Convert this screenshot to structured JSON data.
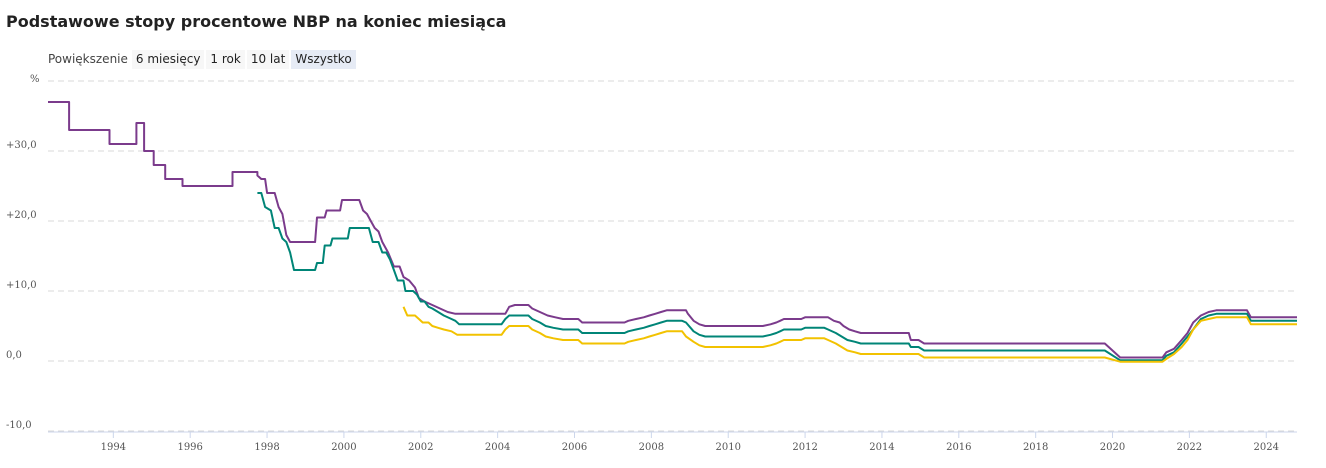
{
  "title": "Podstawowe stopy procentowe NBP na koniec miesiąca",
  "zoom": {
    "label": "Powiększenie",
    "options": [
      "6 miesięcy",
      "1 rok",
      "10 lat",
      "Wszystko"
    ],
    "selected": "Wszystko"
  },
  "chart_data": {
    "type": "line",
    "ylabel": "%",
    "y_ticks": [
      -10,
      0,
      10,
      20,
      30
    ],
    "y_tick_labels": [
      "-10,0",
      "0,0",
      "+10,0",
      "+20,0",
      "+30,0"
    ],
    "ylim": [
      -10,
      40
    ],
    "xlim": [
      1992.3,
      2024.8
    ],
    "x_ticks": [
      1994,
      1996,
      1998,
      2000,
      2002,
      2004,
      2006,
      2008,
      2010,
      2012,
      2014,
      2016,
      2018,
      2020,
      2022,
      2024
    ],
    "grid": true,
    "legend": "none",
    "series": [
      {
        "color": "#7b3b8c",
        "points": [
          [
            1992.3,
            37
          ],
          [
            1992.85,
            37
          ],
          [
            1992.85,
            33
          ],
          [
            1993.9,
            33
          ],
          [
            1993.9,
            31
          ],
          [
            1994.6,
            31
          ],
          [
            1994.6,
            34
          ],
          [
            1994.8,
            34
          ],
          [
            1994.8,
            30
          ],
          [
            1995.05,
            30
          ],
          [
            1995.05,
            28
          ],
          [
            1995.35,
            28
          ],
          [
            1995.35,
            26
          ],
          [
            1995.8,
            26
          ],
          [
            1995.8,
            25
          ],
          [
            1997.1,
            25
          ],
          [
            1997.1,
            27
          ],
          [
            1997.75,
            27
          ],
          [
            1997.75,
            26.5
          ],
          [
            1997.85,
            26
          ],
          [
            1997.95,
            26
          ],
          [
            1998.0,
            24
          ],
          [
            1998.2,
            24
          ],
          [
            1998.3,
            22
          ],
          [
            1998.4,
            21
          ],
          [
            1998.5,
            18
          ],
          [
            1998.6,
            17
          ],
          [
            1999.2,
            17
          ],
          [
            1999.25,
            17
          ],
          [
            1999.3,
            20.5
          ],
          [
            1999.5,
            20.5
          ],
          [
            1999.55,
            21.5
          ],
          [
            1999.9,
            21.5
          ],
          [
            1999.95,
            23
          ],
          [
            2000.4,
            23
          ],
          [
            2000.5,
            21.5
          ],
          [
            2000.6,
            21
          ],
          [
            2000.7,
            20
          ],
          [
            2000.8,
            19
          ],
          [
            2000.9,
            18.5
          ],
          [
            2001.0,
            17
          ],
          [
            2001.15,
            15.5
          ],
          [
            2001.3,
            13.5
          ],
          [
            2001.45,
            13.5
          ],
          [
            2001.55,
            12
          ],
          [
            2001.7,
            11.5
          ],
          [
            2001.85,
            10.5
          ],
          [
            2001.95,
            9
          ],
          [
            2002.1,
            8.5
          ],
          [
            2002.3,
            8
          ],
          [
            2002.5,
            7.5
          ],
          [
            2002.7,
            7
          ],
          [
            2002.9,
            6.75
          ],
          [
            2003.9,
            6.75
          ],
          [
            2004.2,
            6.75
          ],
          [
            2004.3,
            7.75
          ],
          [
            2004.45,
            8
          ],
          [
            2004.8,
            8
          ],
          [
            2004.9,
            7.5
          ],
          [
            2005.1,
            7
          ],
          [
            2005.3,
            6.5
          ],
          [
            2005.5,
            6.25
          ],
          [
            2005.7,
            6
          ],
          [
            2006.1,
            6
          ],
          [
            2006.2,
            5.5
          ],
          [
            2007.3,
            5.5
          ],
          [
            2007.4,
            5.75
          ],
          [
            2007.6,
            6
          ],
          [
            2007.8,
            6.25
          ],
          [
            2007.95,
            6.5
          ],
          [
            2008.1,
            6.75
          ],
          [
            2008.25,
            7
          ],
          [
            2008.4,
            7.25
          ],
          [
            2008.9,
            7.25
          ],
          [
            2008.95,
            6.75
          ],
          [
            2009.1,
            5.75
          ],
          [
            2009.25,
            5.25
          ],
          [
            2009.4,
            5
          ],
          [
            2010.9,
            5
          ],
          [
            2011.1,
            5.25
          ],
          [
            2011.25,
            5.5
          ],
          [
            2011.35,
            5.75
          ],
          [
            2011.45,
            6
          ],
          [
            2011.9,
            6
          ],
          [
            2012.0,
            6.25
          ],
          [
            2012.35,
            6.25
          ],
          [
            2012.6,
            6.25
          ],
          [
            2012.75,
            5.75
          ],
          [
            2012.9,
            5.5
          ],
          [
            2013.0,
            5
          ],
          [
            2013.15,
            4.5
          ],
          [
            2013.3,
            4.25
          ],
          [
            2013.45,
            4
          ],
          [
            2014.7,
            4
          ],
          [
            2014.75,
            3
          ],
          [
            2014.95,
            3
          ],
          [
            2015.1,
            2.5
          ],
          [
            2019.8,
            2.5
          ],
          [
            2020.2,
            0.5
          ],
          [
            2020.4,
            0.5
          ],
          [
            2021.3,
            0.5
          ],
          [
            2021.4,
            1.25
          ],
          [
            2021.6,
            1.75
          ],
          [
            2021.8,
            3
          ],
          [
            2021.95,
            4
          ],
          [
            2022.1,
            5.5
          ],
          [
            2022.3,
            6.5
          ],
          [
            2022.5,
            7
          ],
          [
            2022.7,
            7.25
          ],
          [
            2023.5,
            7.25
          ],
          [
            2023.6,
            6.25
          ],
          [
            2024.8,
            6.25
          ]
        ]
      },
      {
        "color": "#008577",
        "points": [
          [
            1997.75,
            24
          ],
          [
            1997.85,
            24
          ],
          [
            1997.95,
            22
          ],
          [
            1998.1,
            21.5
          ],
          [
            1998.2,
            19
          ],
          [
            1998.3,
            19
          ],
          [
            1998.4,
            17.5
          ],
          [
            1998.5,
            17
          ],
          [
            1998.6,
            15.5
          ],
          [
            1998.7,
            13
          ],
          [
            1999.25,
            13
          ],
          [
            1999.3,
            14
          ],
          [
            1999.45,
            14
          ],
          [
            1999.5,
            16.5
          ],
          [
            1999.65,
            16.5
          ],
          [
            1999.7,
            17.5
          ],
          [
            2000.1,
            17.5
          ],
          [
            2000.15,
            19
          ],
          [
            2000.65,
            19
          ],
          [
            2000.75,
            17
          ],
          [
            2000.9,
            17
          ],
          [
            2001.0,
            15.5
          ],
          [
            2001.1,
            15.5
          ],
          [
            2001.2,
            14.5
          ],
          [
            2001.3,
            13
          ],
          [
            2001.4,
            11.5
          ],
          [
            2001.55,
            11.5
          ],
          [
            2001.6,
            10
          ],
          [
            2001.8,
            10
          ],
          [
            2001.9,
            9.5
          ],
          [
            2002.0,
            8.5
          ],
          [
            2002.1,
            8.5
          ],
          [
            2002.2,
            7.75
          ],
          [
            2002.3,
            7.5
          ],
          [
            2002.45,
            7
          ],
          [
            2002.6,
            6.5
          ],
          [
            2002.8,
            6
          ],
          [
            2002.9,
            5.75
          ],
          [
            2003.0,
            5.25
          ],
          [
            2004.0,
            5.25
          ],
          [
            2004.1,
            5.25
          ],
          [
            2004.2,
            6
          ],
          [
            2004.3,
            6.5
          ],
          [
            2004.8,
            6.5
          ],
          [
            2004.9,
            6
          ],
          [
            2005.1,
            5.5
          ],
          [
            2005.25,
            5
          ],
          [
            2005.45,
            4.75
          ],
          [
            2005.7,
            4.5
          ],
          [
            2006.1,
            4.5
          ],
          [
            2006.2,
            4
          ],
          [
            2007.3,
            4
          ],
          [
            2007.4,
            4.25
          ],
          [
            2007.6,
            4.5
          ],
          [
            2007.8,
            4.75
          ],
          [
            2007.95,
            5
          ],
          [
            2008.1,
            5.25
          ],
          [
            2008.25,
            5.5
          ],
          [
            2008.4,
            5.75
          ],
          [
            2008.8,
            5.75
          ],
          [
            2008.9,
            5.5
          ],
          [
            2009.1,
            4.25
          ],
          [
            2009.25,
            3.75
          ],
          [
            2009.4,
            3.5
          ],
          [
            2010.9,
            3.5
          ],
          [
            2011.1,
            3.75
          ],
          [
            2011.25,
            4
          ],
          [
            2011.35,
            4.25
          ],
          [
            2011.45,
            4.5
          ],
          [
            2011.9,
            4.5
          ],
          [
            2012.0,
            4.75
          ],
          [
            2012.5,
            4.75
          ],
          [
            2012.6,
            4.5
          ],
          [
            2012.8,
            4
          ],
          [
            2012.95,
            3.5
          ],
          [
            2013.1,
            3
          ],
          [
            2013.3,
            2.75
          ],
          [
            2013.45,
            2.5
          ],
          [
            2014.7,
            2.5
          ],
          [
            2014.75,
            2
          ],
          [
            2014.95,
            2
          ],
          [
            2015.1,
            1.5
          ],
          [
            2019.8,
            1.5
          ],
          [
            2020.2,
            0.1
          ],
          [
            2021.3,
            0.1
          ],
          [
            2021.4,
            0.75
          ],
          [
            2021.6,
            1.25
          ],
          [
            2021.8,
            2.5
          ],
          [
            2021.95,
            3.5
          ],
          [
            2022.1,
            4.5
          ],
          [
            2022.3,
            6
          ],
          [
            2022.5,
            6.5
          ],
          [
            2022.7,
            6.75
          ],
          [
            2023.5,
            6.75
          ],
          [
            2023.6,
            5.75
          ],
          [
            2024.8,
            5.75
          ]
        ]
      },
      {
        "color": "#f2c200",
        "points": [
          [
            2001.55,
            7.75
          ],
          [
            2001.65,
            6.5
          ],
          [
            2001.85,
            6.5
          ],
          [
            2001.95,
            6
          ],
          [
            2002.05,
            5.5
          ],
          [
            2002.2,
            5.5
          ],
          [
            2002.3,
            5
          ],
          [
            2002.45,
            4.75
          ],
          [
            2002.6,
            4.5
          ],
          [
            2002.8,
            4.25
          ],
          [
            2002.95,
            3.75
          ],
          [
            2004.0,
            3.75
          ],
          [
            2004.1,
            3.75
          ],
          [
            2004.2,
            4.5
          ],
          [
            2004.3,
            5
          ],
          [
            2004.8,
            5
          ],
          [
            2004.9,
            4.5
          ],
          [
            2005.1,
            4
          ],
          [
            2005.25,
            3.5
          ],
          [
            2005.45,
            3.25
          ],
          [
            2005.7,
            3
          ],
          [
            2006.1,
            3
          ],
          [
            2006.2,
            2.5
          ],
          [
            2007.3,
            2.5
          ],
          [
            2007.4,
            2.75
          ],
          [
            2007.6,
            3
          ],
          [
            2007.8,
            3.25
          ],
          [
            2007.95,
            3.5
          ],
          [
            2008.1,
            3.75
          ],
          [
            2008.25,
            4
          ],
          [
            2008.4,
            4.25
          ],
          [
            2008.8,
            4.25
          ],
          [
            2008.9,
            3.5
          ],
          [
            2009.1,
            2.75
          ],
          [
            2009.25,
            2.25
          ],
          [
            2009.4,
            2
          ],
          [
            2010.9,
            2
          ],
          [
            2011.1,
            2.25
          ],
          [
            2011.25,
            2.5
          ],
          [
            2011.35,
            2.75
          ],
          [
            2011.45,
            3
          ],
          [
            2011.9,
            3
          ],
          [
            2012.0,
            3.25
          ],
          [
            2012.5,
            3.25
          ],
          [
            2012.6,
            3
          ],
          [
            2012.8,
            2.5
          ],
          [
            2012.95,
            2
          ],
          [
            2013.1,
            1.5
          ],
          [
            2013.3,
            1.25
          ],
          [
            2013.45,
            1
          ],
          [
            2014.7,
            1
          ],
          [
            2014.75,
            1
          ],
          [
            2014.95,
            1
          ],
          [
            2015.1,
            0.5
          ],
          [
            2019.8,
            0.5
          ],
          [
            2020.2,
            -0.1
          ],
          [
            2021.3,
            -0.1
          ],
          [
            2021.4,
            0.3
          ],
          [
            2021.6,
            1
          ],
          [
            2021.8,
            2
          ],
          [
            2021.95,
            3
          ],
          [
            2022.1,
            4.5
          ],
          [
            2022.3,
            5.75
          ],
          [
            2022.5,
            6
          ],
          [
            2022.7,
            6.25
          ],
          [
            2023.5,
            6.25
          ],
          [
            2023.6,
            5.25
          ],
          [
            2024.8,
            5.25
          ]
        ]
      }
    ]
  }
}
